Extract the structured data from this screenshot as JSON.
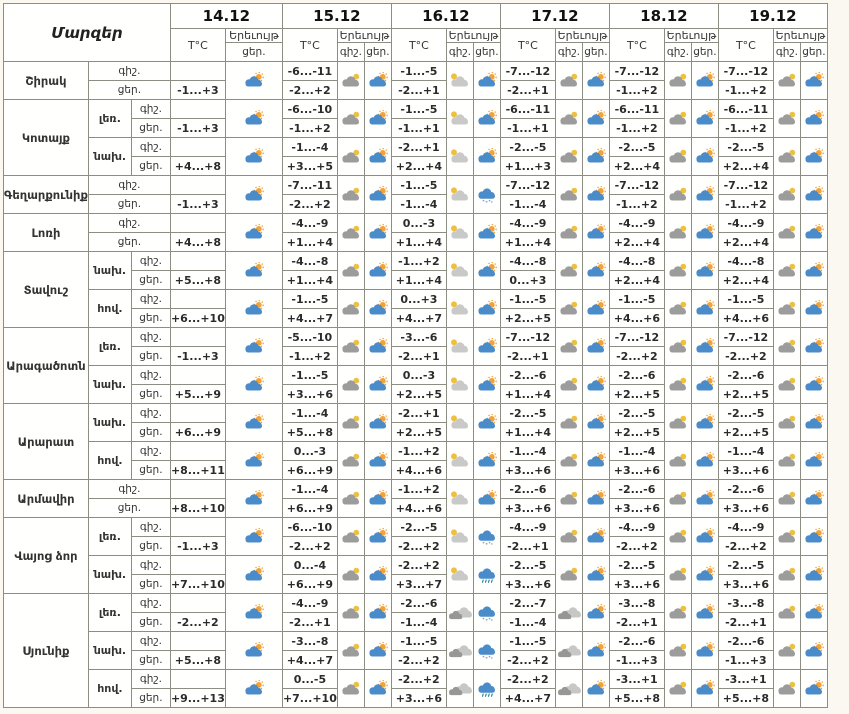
{
  "header": {
    "regions_label": "Մարզեր",
    "temp_label": "T°C",
    "phenomenon_label": "Երեւույթ",
    "night_label": "գիշ.",
    "day_label": "ցեր.",
    "dates": [
      "14.12",
      "15.12",
      "16.12",
      "17.12",
      "18.12",
      "19.12"
    ]
  },
  "icon_names": [
    "sun-cloud",
    "moon-cloud",
    "moon-cloud-light",
    "cloudy",
    "snow",
    "rain"
  ],
  "colors": {
    "border": "#8e8d84",
    "cell_bg": "#fffffe",
    "page_bg": "#faf8f1",
    "day_cloud": "#4a8bc9",
    "night_cloud": "#9c9c9c",
    "light_cloud": "#c9c9c8",
    "sun": "#f1a33a",
    "moon": "#edc13f",
    "rain_mark": "#1f7f8f",
    "snow_mark": "#93a7b5"
  },
  "regions": [
    {
      "name": "Շիրակ",
      "zones": [
        {
          "zone": "",
          "cells": [
            {
              "day": "-1...+3",
              "day_icon": "sun-cloud"
            },
            {
              "night": "-6...-11",
              "day": "-2...+2",
              "night_icon": "moon-cloud",
              "day_icon": "sun-cloud"
            },
            {
              "night": "-1...-5",
              "day": "-2...+1",
              "night_icon": "moon-cloud-light",
              "day_icon": "sun-cloud"
            },
            {
              "night": "-7...-12",
              "day": "-2...+1",
              "night_icon": "moon-cloud",
              "day_icon": "sun-cloud"
            },
            {
              "night": "-7...-12",
              "day": "-1...+2",
              "night_icon": "moon-cloud",
              "day_icon": "sun-cloud"
            },
            {
              "night": "-7...-12",
              "day": "-1...+2",
              "night_icon": "moon-cloud",
              "day_icon": "sun-cloud"
            }
          ]
        }
      ]
    },
    {
      "name": "Կոտայք",
      "zones": [
        {
          "zone": "լեռ.",
          "cells": [
            {
              "day": "-1...+3",
              "day_icon": "sun-cloud"
            },
            {
              "night": "-6...-10",
              "day": "-1...+2",
              "night_icon": "moon-cloud",
              "day_icon": "sun-cloud"
            },
            {
              "night": "-1...-5",
              "day": "-1...+1",
              "night_icon": "moon-cloud-light",
              "day_icon": "sun-cloud"
            },
            {
              "night": "-6...-11",
              "day": "-1...+1",
              "night_icon": "moon-cloud",
              "day_icon": "sun-cloud"
            },
            {
              "night": "-6...-11",
              "day": "-1...+2",
              "night_icon": "moon-cloud",
              "day_icon": "sun-cloud"
            },
            {
              "night": "-6...-11",
              "day": "-1...+2",
              "night_icon": "moon-cloud",
              "day_icon": "sun-cloud"
            }
          ]
        },
        {
          "zone": "նախ.",
          "cells": [
            {
              "day": "+4...+8",
              "day_icon": "sun-cloud"
            },
            {
              "night": "-1...-4",
              "day": "+3...+5",
              "night_icon": "moon-cloud",
              "day_icon": "sun-cloud"
            },
            {
              "night": "-2...+1",
              "day": "+2...+4",
              "night_icon": "moon-cloud-light",
              "day_icon": "sun-cloud"
            },
            {
              "night": "-2...-5",
              "day": "+1...+3",
              "night_icon": "moon-cloud",
              "day_icon": "sun-cloud"
            },
            {
              "night": "-2...-5",
              "day": "+2...+4",
              "night_icon": "moon-cloud",
              "day_icon": "sun-cloud"
            },
            {
              "night": "-2...-5",
              "day": "+2...+4",
              "night_icon": "moon-cloud",
              "day_icon": "sun-cloud"
            }
          ]
        }
      ]
    },
    {
      "name": "Գեղարքունիք",
      "zones": [
        {
          "zone": "",
          "cells": [
            {
              "day": "-1...+3",
              "day_icon": "sun-cloud"
            },
            {
              "night": "-7...-11",
              "day": "-2...+2",
              "night_icon": "moon-cloud",
              "day_icon": "sun-cloud"
            },
            {
              "night": "-1...-5",
              "day": "-1...-4",
              "night_icon": "moon-cloud-light",
              "day_icon": "snow"
            },
            {
              "night": "-7...-12",
              "day": "-1...-4",
              "night_icon": "moon-cloud",
              "day_icon": "sun-cloud"
            },
            {
              "night": "-7...-12",
              "day": "-1...+2",
              "night_icon": "moon-cloud",
              "day_icon": "sun-cloud"
            },
            {
              "night": "-7...-12",
              "day": "-1...+2",
              "night_icon": "moon-cloud",
              "day_icon": "sun-cloud"
            }
          ]
        }
      ]
    },
    {
      "name": "Լոռի",
      "zones": [
        {
          "zone": "",
          "cells": [
            {
              "day": "+4...+8",
              "day_icon": "sun-cloud"
            },
            {
              "night": "-4...-9",
              "day": "+1...+4",
              "night_icon": "moon-cloud",
              "day_icon": "sun-cloud"
            },
            {
              "night": "0...-3",
              "day": "+1...+4",
              "night_icon": "moon-cloud-light",
              "day_icon": "sun-cloud"
            },
            {
              "night": "-4...-9",
              "day": "+1...+4",
              "night_icon": "moon-cloud",
              "day_icon": "sun-cloud"
            },
            {
              "night": "-4...-9",
              "day": "+2...+4",
              "night_icon": "moon-cloud",
              "day_icon": "sun-cloud"
            },
            {
              "night": "-4...-9",
              "day": "+2...+4",
              "night_icon": "moon-cloud",
              "day_icon": "sun-cloud"
            }
          ]
        }
      ]
    },
    {
      "name": "Տավուշ",
      "zones": [
        {
          "zone": "նախ.",
          "cells": [
            {
              "day": "+5...+8",
              "day_icon": "sun-cloud"
            },
            {
              "night": "-4...-8",
              "day": "+1...+4",
              "night_icon": "moon-cloud",
              "day_icon": "sun-cloud"
            },
            {
              "night": "-1...+2",
              "day": "+1...+4",
              "night_icon": "moon-cloud-light",
              "day_icon": "sun-cloud"
            },
            {
              "night": "-4...-8",
              "day": "0...+3",
              "night_icon": "moon-cloud",
              "day_icon": "sun-cloud"
            },
            {
              "night": "-4...-8",
              "day": "+2...+4",
              "night_icon": "moon-cloud",
              "day_icon": "sun-cloud"
            },
            {
              "night": "-4...-8",
              "day": "+2...+4",
              "night_icon": "moon-cloud",
              "day_icon": "sun-cloud"
            }
          ]
        },
        {
          "zone": "հով.",
          "cells": [
            {
              "day": "+6...+10",
              "day_icon": "sun-cloud"
            },
            {
              "night": "-1...-5",
              "day": "+4...+7",
              "night_icon": "moon-cloud",
              "day_icon": "sun-cloud"
            },
            {
              "night": "0...+3",
              "day": "+4...+7",
              "night_icon": "moon-cloud-light",
              "day_icon": "sun-cloud"
            },
            {
              "night": "-1...-5",
              "day": "+2...+5",
              "night_icon": "moon-cloud",
              "day_icon": "sun-cloud"
            },
            {
              "night": "-1...-5",
              "day": "+4...+6",
              "night_icon": "moon-cloud",
              "day_icon": "sun-cloud"
            },
            {
              "night": "-1...-5",
              "day": "+4...+6",
              "night_icon": "moon-cloud",
              "day_icon": "sun-cloud"
            }
          ]
        }
      ]
    },
    {
      "name": "Արագածոտն",
      "zones": [
        {
          "zone": "լեռ.",
          "cells": [
            {
              "day": "-1...+3",
              "day_icon": "sun-cloud"
            },
            {
              "night": "-5...-10",
              "day": "-1...+2",
              "night_icon": "moon-cloud",
              "day_icon": "sun-cloud"
            },
            {
              "night": "-3...-6",
              "day": "-2...+1",
              "night_icon": "moon-cloud-light",
              "day_icon": "sun-cloud"
            },
            {
              "night": "-7...-12",
              "day": "-2...+1",
              "night_icon": "moon-cloud",
              "day_icon": "sun-cloud"
            },
            {
              "night": "-7...-12",
              "day": "-2...+2",
              "night_icon": "moon-cloud",
              "day_icon": "sun-cloud"
            },
            {
              "night": "-7...-12",
              "day": "-2...+2",
              "night_icon": "moon-cloud",
              "day_icon": "sun-cloud"
            }
          ]
        },
        {
          "zone": "նախ.",
          "cells": [
            {
              "day": "+5...+9",
              "day_icon": "sun-cloud"
            },
            {
              "night": "-1...-5",
              "day": "+3...+6",
              "night_icon": "moon-cloud",
              "day_icon": "sun-cloud"
            },
            {
              "night": "0...-3",
              "day": "+2...+5",
              "night_icon": "moon-cloud-light",
              "day_icon": "sun-cloud"
            },
            {
              "night": "-2...-6",
              "day": "+1...+4",
              "night_icon": "moon-cloud",
              "day_icon": "sun-cloud"
            },
            {
              "night": "-2...-6",
              "day": "+2...+5",
              "night_icon": "moon-cloud",
              "day_icon": "sun-cloud"
            },
            {
              "night": "-2...-6",
              "day": "+2...+5",
              "night_icon": "moon-cloud",
              "day_icon": "sun-cloud"
            }
          ]
        }
      ]
    },
    {
      "name": "Արարատ",
      "zones": [
        {
          "zone": "նախ.",
          "cells": [
            {
              "day": "+6...+9",
              "day_icon": "sun-cloud"
            },
            {
              "night": "-1...-4",
              "day": "+5...+8",
              "night_icon": "moon-cloud",
              "day_icon": "sun-cloud"
            },
            {
              "night": "-2...+1",
              "day": "+2...+5",
              "night_icon": "moon-cloud-light",
              "day_icon": "sun-cloud"
            },
            {
              "night": "-2...-5",
              "day": "+1...+4",
              "night_icon": "moon-cloud",
              "day_icon": "sun-cloud"
            },
            {
              "night": "-2...-5",
              "day": "+2...+5",
              "night_icon": "moon-cloud",
              "day_icon": "sun-cloud"
            },
            {
              "night": "-2...-5",
              "day": "+2...+5",
              "night_icon": "moon-cloud",
              "day_icon": "sun-cloud"
            }
          ]
        },
        {
          "zone": "հով.",
          "cells": [
            {
              "day": "+8...+11",
              "day_icon": "sun-cloud"
            },
            {
              "night": "0...-3",
              "day": "+6...+9",
              "night_icon": "moon-cloud",
              "day_icon": "sun-cloud"
            },
            {
              "night": "-1...+2",
              "day": "+4...+6",
              "night_icon": "moon-cloud-light",
              "day_icon": "sun-cloud"
            },
            {
              "night": "-1...-4",
              "day": "+3...+6",
              "night_icon": "moon-cloud",
              "day_icon": "sun-cloud"
            },
            {
              "night": "-1...-4",
              "day": "+3...+6",
              "night_icon": "moon-cloud",
              "day_icon": "sun-cloud"
            },
            {
              "night": "-1...-4",
              "day": "+3...+6",
              "night_icon": "moon-cloud",
              "day_icon": "sun-cloud"
            }
          ]
        }
      ]
    },
    {
      "name": "Արմավիր",
      "zones": [
        {
          "zone": "",
          "cells": [
            {
              "day": "+8...+10",
              "day_icon": "sun-cloud"
            },
            {
              "night": "-1...-4",
              "day": "+6...+9",
              "night_icon": "moon-cloud",
              "day_icon": "sun-cloud"
            },
            {
              "night": "-1...+2",
              "day": "+4...+6",
              "night_icon": "moon-cloud-light",
              "day_icon": "sun-cloud"
            },
            {
              "night": "-2...-6",
              "day": "+3...+6",
              "night_icon": "moon-cloud",
              "day_icon": "sun-cloud"
            },
            {
              "night": "-2...-6",
              "day": "+3...+6",
              "night_icon": "moon-cloud",
              "day_icon": "sun-cloud"
            },
            {
              "night": "-2...-6",
              "day": "+3...+6",
              "night_icon": "moon-cloud",
              "day_icon": "sun-cloud"
            }
          ]
        }
      ]
    },
    {
      "name": "Վայոց ձոր",
      "zones": [
        {
          "zone": "լեռ.",
          "cells": [
            {
              "day": "-1...+3",
              "day_icon": "sun-cloud"
            },
            {
              "night": "-6...-10",
              "day": "-2...+2",
              "night_icon": "moon-cloud",
              "day_icon": "sun-cloud"
            },
            {
              "night": "-2...-5",
              "day": "-2...+2",
              "night_icon": "moon-cloud-light",
              "day_icon": "snow"
            },
            {
              "night": "-4...-9",
              "day": "-2...+1",
              "night_icon": "moon-cloud",
              "day_icon": "sun-cloud"
            },
            {
              "night": "-4...-9",
              "day": "-2...+2",
              "night_icon": "moon-cloud",
              "day_icon": "sun-cloud"
            },
            {
              "night": "-4...-9",
              "day": "-2...+2",
              "night_icon": "moon-cloud",
              "day_icon": "sun-cloud"
            }
          ]
        },
        {
          "zone": "նախ.",
          "cells": [
            {
              "day": "+7...+10",
              "day_icon": "sun-cloud"
            },
            {
              "night": "0...-4",
              "day": "+6...+9",
              "night_icon": "moon-cloud",
              "day_icon": "sun-cloud"
            },
            {
              "night": "-2...+2",
              "day": "+3...+7",
              "night_icon": "moon-cloud-light",
              "day_icon": "rain"
            },
            {
              "night": "-2...-5",
              "day": "+3...+6",
              "night_icon": "moon-cloud",
              "day_icon": "sun-cloud"
            },
            {
              "night": "-2...-5",
              "day": "+3...+6",
              "night_icon": "moon-cloud",
              "day_icon": "sun-cloud"
            },
            {
              "night": "-2...-5",
              "day": "+3...+6",
              "night_icon": "moon-cloud",
              "day_icon": "sun-cloud"
            }
          ]
        }
      ]
    },
    {
      "name": "Սյունիք",
      "zones": [
        {
          "zone": "լեռ.",
          "cells": [
            {
              "day": "-2...+2",
              "day_icon": "sun-cloud"
            },
            {
              "night": "-4...-9",
              "day": "-2...+1",
              "night_icon": "moon-cloud",
              "day_icon": "sun-cloud"
            },
            {
              "night": "-2...-6",
              "day": "-1...-4",
              "night_icon": "cloudy",
              "day_icon": "snow"
            },
            {
              "night": "-2...-7",
              "day": "-1...-4",
              "night_icon": "cloudy",
              "day_icon": "sun-cloud"
            },
            {
              "night": "-3...-8",
              "day": "-2...+1",
              "night_icon": "moon-cloud",
              "day_icon": "sun-cloud"
            },
            {
              "night": "-3...-8",
              "day": "-2...+1",
              "night_icon": "moon-cloud",
              "day_icon": "sun-cloud"
            }
          ]
        },
        {
          "zone": "նախ.",
          "cells": [
            {
              "day": "+5...+8",
              "day_icon": "sun-cloud"
            },
            {
              "night": "-3...-8",
              "day": "+4...+7",
              "night_icon": "moon-cloud",
              "day_icon": "sun-cloud"
            },
            {
              "night": "-1...-5",
              "day": "-2...+2",
              "night_icon": "cloudy",
              "day_icon": "snow"
            },
            {
              "night": "-1...-5",
              "day": "-2...+2",
              "night_icon": "cloudy",
              "day_icon": "sun-cloud"
            },
            {
              "night": "-2...-6",
              "day": "-1...+3",
              "night_icon": "moon-cloud",
              "day_icon": "sun-cloud"
            },
            {
              "night": "-2...-6",
              "day": "-1...+3",
              "night_icon": "moon-cloud",
              "day_icon": "sun-cloud"
            }
          ]
        },
        {
          "zone": "հով.",
          "cells": [
            {
              "day": "+9...+13",
              "day_icon": "sun-cloud"
            },
            {
              "night": "0...-5",
              "day": "+7...+10",
              "night_icon": "moon-cloud",
              "day_icon": "sun-cloud"
            },
            {
              "night": "-2...+2",
              "day": "+3...+6",
              "night_icon": "cloudy",
              "day_icon": "rain"
            },
            {
              "night": "-2...+2",
              "day": "+4...+7",
              "night_icon": "cloudy",
              "day_icon": "sun-cloud"
            },
            {
              "night": "-3...+1",
              "day": "+5...+8",
              "night_icon": "moon-cloud",
              "day_icon": "sun-cloud"
            },
            {
              "night": "-3...+1",
              "day": "+5...+8",
              "night_icon": "moon-cloud",
              "day_icon": "sun-cloud"
            }
          ]
        }
      ]
    }
  ]
}
